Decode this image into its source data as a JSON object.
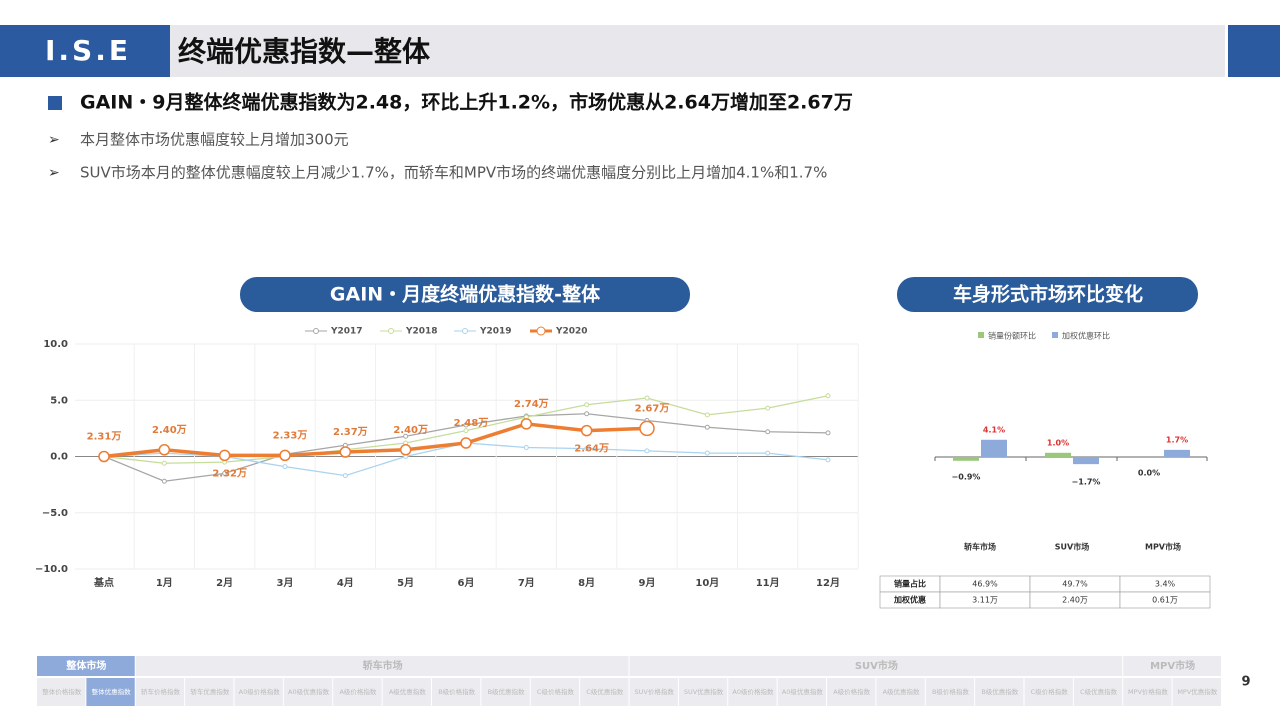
{
  "header": {
    "logo": "I.S.E",
    "title": "终端优惠指数—整体"
  },
  "headline": "GAIN・9月整体终端优惠指数为2.48，环比上升1.2%，市场优惠从2.64万增加至2.67万",
  "bullets": [
    "本月整体市场优惠幅度较上月增加300元",
    "SUV市场本月的整体优惠幅度较上月减少1.7%，而轿车和MPV市场的终端优惠幅度分别比上月增加4.1%和1.7%"
  ],
  "page_number": "9",
  "chart_data": [
    {
      "type": "line",
      "title": "GAIN・月度终端优惠指数-整体",
      "categories": [
        "基点",
        "1月",
        "2月",
        "3月",
        "4月",
        "5月",
        "6月",
        "7月",
        "8月",
        "9月",
        "10月",
        "11月",
        "12月"
      ],
      "ylim": [
        -10,
        10
      ],
      "yticks": [
        {
          "value": 10,
          "label": "10.0"
        },
        {
          "value": 5,
          "label": "5.0"
        },
        {
          "value": 0,
          "label": "0.0"
        },
        {
          "value": -5,
          "label": "−5.0"
        },
        {
          "value": -10,
          "label": "−10.0"
        }
      ],
      "grid": true,
      "series": [
        {
          "name": "Y2017",
          "color": "#a6a6a6",
          "values": [
            0,
            -2.2,
            -1.5,
            0.2,
            1.0,
            1.8,
            2.8,
            3.6,
            3.8,
            3.2,
            2.6,
            2.2,
            2.1
          ]
        },
        {
          "name": "Y2018",
          "color": "#c5dd9a",
          "values": [
            0,
            -0.6,
            -0.5,
            0,
            0.6,
            1.2,
            2.3,
            3.5,
            4.6,
            5.2,
            3.7,
            4.3,
            5.4
          ]
        },
        {
          "name": "Y2019",
          "color": "#a9d3ef",
          "values": [
            0,
            0.3,
            0,
            -0.9,
            -1.7,
            0,
            1.2,
            0.8,
            0.7,
            0.5,
            0.3,
            0.3,
            -0.3
          ]
        },
        {
          "name": "Y2020",
          "color": "#ed7d31",
          "values": [
            0,
            0.6,
            0.1,
            0.1,
            0.4,
            0.6,
            1.2,
            2.9,
            2.3,
            2.5,
            null,
            null,
            null
          ],
          "annotations": [
            "2.31万",
            "2.40万",
            "2.32万",
            "2.33万",
            "2.37万",
            "2.40万",
            "2.48万",
            "2.74万",
            "2.64万",
            "2.67万"
          ]
        }
      ]
    },
    {
      "type": "bar",
      "title": "车身形式市场环比变化",
      "categories": [
        "轿车市场",
        "SUV市场",
        "MPV市场"
      ],
      "series": [
        {
          "name": "销量份额环比",
          "color": "#9ac77a",
          "values": [
            -0.9,
            1.0,
            0.0
          ],
          "value_labels": [
            "−0.9%",
            "1.0%",
            "0.0%"
          ]
        },
        {
          "name": "加权优惠环比",
          "color": "#8eaadb",
          "values": [
            4.1,
            -1.7,
            1.7
          ],
          "value_labels": [
            "4.1%",
            "−1.7%",
            "1.7%"
          ]
        }
      ],
      "table": [
        {
          "label": "销量占比",
          "cells": [
            "46.9%",
            "49.7%",
            "3.4%"
          ]
        },
        {
          "label": "加权优惠",
          "cells": [
            "3.11万",
            "2.40万",
            "0.61万"
          ]
        }
      ]
    }
  ],
  "nav": [
    {
      "label": "整体市场",
      "active": true,
      "tabs": [
        {
          "label": "整体价格指数"
        },
        {
          "label": "整体优惠指数",
          "active": true
        }
      ]
    },
    {
      "label": "轿车市场",
      "tabs": [
        {
          "label": "轿车价格指数"
        },
        {
          "label": "轿车优惠指数"
        },
        {
          "label": "A0级价格指数"
        },
        {
          "label": "A0级优惠指数"
        },
        {
          "label": "A级价格指数"
        },
        {
          "label": "A级优惠指数"
        },
        {
          "label": "B级价格指数"
        },
        {
          "label": "B级优惠指数"
        },
        {
          "label": "C级价格指数"
        },
        {
          "label": "C级优惠指数"
        }
      ]
    },
    {
      "label": "SUV市场",
      "tabs": [
        {
          "label": "SUV价格指数"
        },
        {
          "label": "SUV优惠指数"
        },
        {
          "label": "A0级价格指数"
        },
        {
          "label": "A0级优惠指数"
        },
        {
          "label": "A级价格指数"
        },
        {
          "label": "A级优惠指数"
        },
        {
          "label": "B级价格指数"
        },
        {
          "label": "B级优惠指数"
        },
        {
          "label": "C级价格指数"
        },
        {
          "label": "C级优惠指数"
        }
      ]
    },
    {
      "label": "MPV市场",
      "tabs": [
        {
          "label": "MPV价格指数"
        },
        {
          "label": "MPV优惠指数"
        }
      ]
    }
  ]
}
